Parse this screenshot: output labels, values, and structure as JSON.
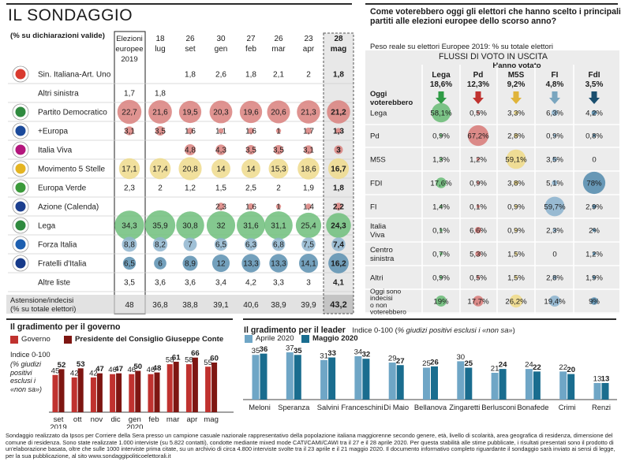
{
  "left_panel": {
    "title": "IL SONDAGGIO",
    "subtitle": "(% su dichiarazioni valide)"
  },
  "right_panel": {
    "title": "Come voterebbero oggi gli elettori che hanno scelto i principali partiti alle elezioni europee dello scorso anno?",
    "subtitle": "Peso reale su elettori Europee 2019: % su totale elettori",
    "flow_title": "FLUSSI DI VOTO IN USCITA",
    "hanno_votato": "Hanno votato",
    "row_header": "Oggi voterebbero"
  },
  "gov_panel": {
    "title": "Il gradimento per il governo",
    "legend": [
      "Governo",
      "Presidente del Consiglio Giuseppe Conte"
    ],
    "ylabel_1": "Indice 0-100",
    "ylabel_2": "(% giudizi positivi esclusi i «non sa»)"
  },
  "leader_panel": {
    "title": "Il gradimento per il leader",
    "subtitle_1": "Indice 0-100 (",
    "subtitle_2": "% giudizi positivi esclusi i «non sa»",
    "subtitle_3": ")"
  },
  "footnote": "Sondaggio realizzato da Ipsos per Corriere della Sera presso un campione casuale nazionale rappresentativo della popolazione italiana maggiorenne secondo genere, età, livello di scolarità, area geografica di residenza, dimensione del comune di residenza. Sono state realizzate 1.000 interviste (su 5.822 contatti), condotte mediante mixed mode CATI/CAMI/CAWI tra il 27 e il 28 aprile 2020. Per questa stabilità alle stime pubblicate, i risultati presentati sono il prodotto di un'elaborazione basata, oltre che sulle 1000 interviste prima citate, su un archivio di circa 4.800 interviste svolte tra il 23 aprile e il 21 maggio 2020. Il documento informativo completo riguardante il sondaggio sarà inviato ai sensi di legge, per la sua pubblicazione, al sito www.sondaggipoliticoelettorali.it",
  "colors": {
    "pd": "#d9807d",
    "m5s": "#efdb8c",
    "lega": "#6fbe7b",
    "fi": "#8fb5cf",
    "fdi": "#5a8fb0",
    "azione": "#d9807d",
    "iv": "#d9807d",
    "governo": "#c0322f",
    "conte": "#7e1612",
    "aprile": "#6fa6c6",
    "maggio": "#1a6d8f",
    "flow_lega": "#2f9b45",
    "flow_pd": "#c0322f",
    "flow_m5s": "#e0b43a",
    "flow_fi": "#7aa6bf",
    "flow_fdi": "#1a4f6f"
  },
  "chart_data": [
    {
      "type": "table",
      "title": "IL SONDAGGIO",
      "columns": [
        {
          "l1": "Elezioni",
          "l2": "europee",
          "l3": "2019"
        },
        {
          "l1": "18",
          "l2": "lug",
          "l3": ""
        },
        {
          "l1": "26",
          "l2": "set",
          "l3": ""
        },
        {
          "l1": "30",
          "l2": "gen",
          "l3": ""
        },
        {
          "l1": "27",
          "l2": "feb",
          "l3": ""
        },
        {
          "l1": "26",
          "l2": "mar",
          "l3": ""
        },
        {
          "l1": "23",
          "l2": "apr",
          "l3": ""
        },
        {
          "l1": "28",
          "l2": "mag",
          "l3": ""
        }
      ],
      "rows": [
        {
          "party": "Sin. Italiana-Art. Uno",
          "logo": "si-logo",
          "logo_color": "#d93a2f",
          "color": null,
          "values": [
            "",
            "",
            "1,8",
            "2,6",
            "1,8",
            "2,1",
            "2",
            "1,8"
          ]
        },
        {
          "party": "Altri sinistra",
          "logo": null,
          "logo_color": null,
          "color": null,
          "values": [
            "1,7",
            "1,8",
            "",
            "",
            "",
            "",
            "",
            ""
          ]
        },
        {
          "party": "Partito Democratico",
          "logo": "pd-logo",
          "logo_color": "#2f8a3f",
          "color": "#d9807d",
          "values": [
            "22,7",
            "21,6",
            "19,5",
            "20,3",
            "19,6",
            "20,6",
            "21,3",
            "21,2"
          ]
        },
        {
          "party": "+Europa",
          "logo": "piu-europa-logo",
          "logo_color": "#1b4a9b",
          "color": "#d9807d",
          "values": [
            "3,1",
            "3,5",
            "1,6",
            "1,1",
            "1,6",
            "1",
            "1,7",
            "1,3"
          ]
        },
        {
          "party": "Italia Viva",
          "logo": "iv-logo",
          "logo_color": "#b4167d",
          "color": "#d9807d",
          "values": [
            "",
            "",
            "4,8",
            "4,3",
            "3,5",
            "3,5",
            "3,1",
            "3"
          ]
        },
        {
          "party": "Movimento 5 Stelle",
          "logo": "m5s-logo",
          "logo_color": "#e5b523",
          "color": "#efdb8c",
          "values": [
            "17,1",
            "17,4",
            "20,8",
            "14",
            "14",
            "15,3",
            "18,6",
            "16,7"
          ]
        },
        {
          "party": "Europa Verde",
          "logo": "ev-logo",
          "logo_color": "#3b9a3a",
          "color": null,
          "values": [
            "2,3",
            "2",
            "1,2",
            "1,5",
            "2,5",
            "2",
            "1,9",
            "1,8"
          ]
        },
        {
          "party": "Azione (Calenda)",
          "logo": "azione-logo",
          "logo_color": "#1c3f8f",
          "color": "#d9807d",
          "values": [
            "",
            "",
            "",
            "2,3",
            "1,6",
            "1",
            "1,4",
            "2,2"
          ]
        },
        {
          "party": "Lega",
          "logo": "lega-logo",
          "logo_color": "#2f8a3f",
          "color": "#6fbe7b",
          "values": [
            "34,3",
            "35,9",
            "30,8",
            "32",
            "31,6",
            "31,1",
            "25,4",
            "24,3"
          ]
        },
        {
          "party": "Forza Italia",
          "logo": "fi-logo",
          "logo_color": "#1d5fb0",
          "color": "#8fb5cf",
          "values": [
            "8,8",
            "8,2",
            "7",
            "6,5",
            "6,3",
            "6,8",
            "7,5",
            "7,4"
          ]
        },
        {
          "party": "Fratelli d'Italia",
          "logo": "fdi-logo",
          "logo_color": "#163a8a",
          "color": "#5a8fb0",
          "values": [
            "6,5",
            "6",
            "8,9",
            "12",
            "13,3",
            "13,3",
            "14,1",
            "16,2"
          ]
        },
        {
          "party": "Altre liste",
          "logo": null,
          "logo_color": null,
          "color": null,
          "values": [
            "3,5",
            "3,6",
            "3,6",
            "3,4",
            "4,2",
            "3,3",
            "3",
            "4,1"
          ]
        }
      ],
      "footer": {
        "label_1": "Astensione/indecisi",
        "label_2": "(% su totale elettori)",
        "values": [
          "48",
          "36,8",
          "38,8",
          "39,1",
          "40,6",
          "38,9",
          "39,9",
          "43,2"
        ]
      }
    },
    {
      "type": "table",
      "title": "FLUSSI DI VOTO IN USCITA",
      "columns": [
        {
          "party": "Lega",
          "share": "18,6%",
          "color": "#6fbe7b",
          "arrow_color": "#2f9b45"
        },
        {
          "party": "Pd",
          "share": "12,3%",
          "color": "#d9807d",
          "arrow_color": "#c0322f"
        },
        {
          "party": "M5S",
          "share": "9,2%",
          "color": "#efdb8c",
          "arrow_color": "#e0b43a"
        },
        {
          "party": "FI",
          "share": "4,8%",
          "color": "#8fb5cf",
          "arrow_color": "#7aa6bf"
        },
        {
          "party": "FdI",
          "share": "3,5%",
          "color": "#5a8fb0",
          "arrow_color": "#1a4f6f"
        }
      ],
      "rows": [
        {
          "label_lines": [
            "Lega"
          ],
          "values": [
            "58,1%",
            "0,5%",
            "3,3%",
            "6,3%",
            "4,2%"
          ],
          "dots": [
            58.1,
            0.5,
            3.3,
            6.3,
            4.2
          ]
        },
        {
          "label_lines": [
            "Pd"
          ],
          "values": [
            "0,9%",
            "67,2%",
            "2,8%",
            "0,9%",
            "0,8%"
          ],
          "dots": [
            0.9,
            67.2,
            2.8,
            0.9,
            0.8
          ]
        },
        {
          "label_lines": [
            "M5S"
          ],
          "values": [
            "1,3%",
            "1,2%",
            "59,1%",
            "3,5%",
            "0"
          ],
          "dots": [
            1.3,
            1.2,
            59.1,
            3.5,
            0
          ]
        },
        {
          "label_lines": [
            "FDI"
          ],
          "values": [
            "17,6%",
            "0,9%",
            "3,8%",
            "5,1%",
            "78%"
          ],
          "dots": [
            17.6,
            0.9,
            3.8,
            5.1,
            78
          ]
        },
        {
          "label_lines": [
            "FI"
          ],
          "values": [
            "1,4%",
            "0,1%",
            "0,9%",
            "59,7%",
            "2,9%"
          ],
          "dots": [
            1.4,
            0.1,
            0.9,
            59.7,
            2.9
          ]
        },
        {
          "label_lines": [
            "Italia",
            "Viva"
          ],
          "values": [
            "0,1%",
            "6,6%",
            "0,9%",
            "2,3%",
            "2%"
          ],
          "dots": [
            0.1,
            6.6,
            0.9,
            2.3,
            2
          ]
        },
        {
          "label_lines": [
            "Centro",
            "sinistra"
          ],
          "values": [
            "0,7%",
            "5,3%",
            "1,5%",
            "0",
            "1,2%"
          ],
          "dots": [
            0.7,
            5.3,
            1.5,
            0,
            1.2
          ]
        },
        {
          "label_lines": [
            "Altri"
          ],
          "values": [
            "0,9%",
            "0,5%",
            "1,5%",
            "2,8%",
            "1,9%"
          ],
          "dots": [
            0.9,
            0.5,
            1.5,
            2.8,
            1.9
          ]
        },
        {
          "label_lines": [
            "Oggi sono",
            "indecisi",
            "o non",
            "voterebbero"
          ],
          "values": [
            "19%",
            "17,7%",
            "26,2%",
            "19,4%",
            "9%"
          ],
          "dots": [
            19,
            17.7,
            26.2,
            19.4,
            9
          ]
        }
      ]
    },
    {
      "type": "bar",
      "title": "Il gradimento per il governo",
      "ylabel": "Indice 0-100 (% giudizi positivi esclusi i «non sa»)",
      "categories": [
        "set",
        "ott",
        "nov",
        "dic",
        "gen",
        "feb",
        "mar",
        "apr",
        "mag"
      ],
      "category_sublabels": [
        "2019",
        "",
        "",
        "",
        "2020",
        "",
        "",
        "",
        ""
      ],
      "series": [
        {
          "name": "Governo",
          "values": [
            45,
            42,
            42,
            46,
            46,
            46,
            58,
            58,
            55
          ],
          "color": "#c0322f"
        },
        {
          "name": "Presidente del Consiglio Giuseppe Conte",
          "values": [
            52,
            53,
            47,
            47,
            50,
            48,
            61,
            66,
            60
          ],
          "color": "#7e1612"
        }
      ],
      "ylim": [
        0,
        100
      ]
    },
    {
      "type": "bar",
      "title": "Il gradimento per il leader",
      "categories": [
        "Meloni",
        "Speranza",
        "Salvini",
        "Franceschini",
        "Di Maio",
        "Bellanova",
        "Zingaretti",
        "Berlusconi",
        "Bonafede",
        "Crimi",
        "Renzi"
      ],
      "series": [
        {
          "name": "Aprile 2020",
          "values": [
            35,
            37,
            31,
            34,
            29,
            25,
            30,
            21,
            24,
            22,
            13
          ],
          "color": "#6fa6c6"
        },
        {
          "name": "Maggio 2020",
          "values": [
            36,
            35,
            33,
            32,
            27,
            26,
            25,
            24,
            22,
            20,
            13
          ],
          "color": "#1a6d8f"
        }
      ],
      "ylim": [
        0,
        100
      ]
    }
  ]
}
